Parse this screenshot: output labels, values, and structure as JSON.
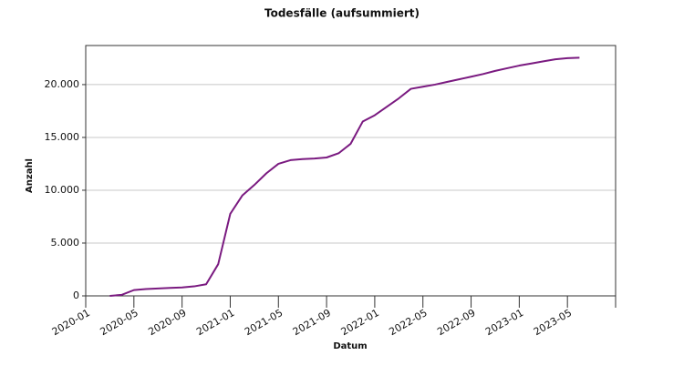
{
  "chart_data": {
    "type": "line",
    "title": "Todesfälle (aufsummiert)",
    "x_label": "Datum",
    "y_label": "Anzahl",
    "x": [
      "2020-03",
      "2020-04",
      "2020-05",
      "2020-06",
      "2020-07",
      "2020-08",
      "2020-09",
      "2020-10",
      "2020-11",
      "2020-12",
      "2021-01",
      "2021-02",
      "2021-03",
      "2021-04",
      "2021-05",
      "2021-06",
      "2021-07",
      "2021-08",
      "2021-09",
      "2021-10",
      "2021-11",
      "2021-12",
      "2022-01",
      "2022-02",
      "2022-03",
      "2022-04",
      "2022-05",
      "2022-06",
      "2022-07",
      "2022-08",
      "2022-09",
      "2022-10",
      "2022-11",
      "2022-12",
      "2023-01",
      "2023-02",
      "2023-03",
      "2023-04",
      "2023-05",
      "2023-06"
    ],
    "series": [
      {
        "name": "Todesfälle",
        "color": "#7a1a80",
        "values": [
          0,
          100,
          550,
          650,
          700,
          750,
          800,
          900,
          1100,
          3000,
          7760,
          9500,
          10500,
          11600,
          12500,
          12850,
          12950,
          13000,
          13100,
          13500,
          14400,
          16500,
          17100,
          17900,
          18700,
          19600,
          19800,
          20000,
          20250,
          20500,
          20750,
          21000,
          21300,
          21550,
          21800,
          22000,
          22200,
          22400,
          22500,
          22550
        ]
      }
    ],
    "xlim": [
      "2020-01",
      "2023-09"
    ],
    "xticks": [
      "2020-01",
      "2020-05",
      "2020-09",
      "2021-01",
      "2021-05",
      "2021-09",
      "2022-01",
      "2022-05",
      "2022-09",
      "2023-01",
      "2023-05"
    ],
    "ylim": [
      0,
      23700
    ],
    "yticks": [
      0,
      {
        "value": 5000,
        "label": "5.000"
      },
      {
        "value": 10000,
        "label": "10.000"
      },
      {
        "value": 15000,
        "label": "15.000"
      },
      {
        "value": 20000,
        "label": "20.000"
      }
    ],
    "grid": true
  }
}
